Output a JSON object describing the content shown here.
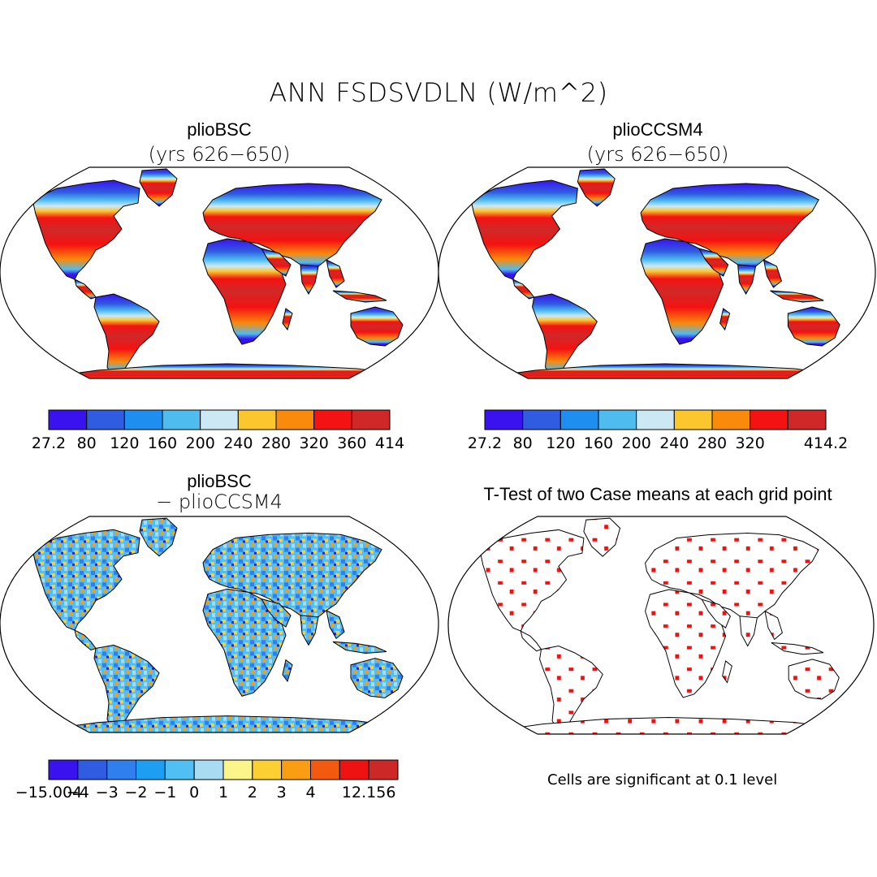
{
  "figure": {
    "title": "ANN FSDSVDLN (W/m^2)"
  },
  "panels": [
    {
      "id": "top-left",
      "title": "plioBSC",
      "subtitle": "(yrs 626−650)",
      "colorbar": {
        "colors": [
          "#3a12f0",
          "#2f5ce0",
          "#1e8ef0",
          "#4fbcf0",
          "#cde8f5",
          "#fcc62f",
          "#f98a0c",
          "#f51212",
          "#d02828"
        ],
        "labels": [
          "27.2",
          "80",
          "120",
          "160",
          "200",
          "240",
          "280",
          "320",
          "360",
          "414"
        ]
      }
    },
    {
      "id": "top-right",
      "title": "plioCCSM4",
      "subtitle": "(yrs 626−650)",
      "colorbar": {
        "colors": [
          "#3a12f0",
          "#2f5ce0",
          "#1e8ef0",
          "#4fbcf0",
          "#cde8f5",
          "#fcc62f",
          "#f98a0c",
          "#f51212",
          "#d02828"
        ],
        "labels": [
          "27.2",
          "80",
          "120",
          "160",
          "200",
          "240",
          "280",
          "320",
          "",
          "414.2"
        ]
      }
    },
    {
      "id": "bottom-left",
      "title": "plioBSC",
      "subtitle": "− plioCCSM4",
      "colorbar": {
        "colors": [
          "#3a12f0",
          "#2f5ce0",
          "#2f7fee",
          "#1e9ef2",
          "#50bff3",
          "#a9dcf2",
          "#fbf58a",
          "#fccf33",
          "#f99d12",
          "#f45a0f",
          "#ee1212",
          "#cc2828"
        ],
        "labels": [
          "−15.004",
          "−4",
          "−3",
          "−2",
          "−1",
          "0",
          "1",
          "2",
          "3",
          "4",
          "",
          "12.156"
        ]
      }
    },
    {
      "id": "bottom-right",
      "title": "T-Test of two Case means at each grid point",
      "note": "Cells are significant at 0.1 level",
      "significance_color": "#f01010"
    }
  ]
}
